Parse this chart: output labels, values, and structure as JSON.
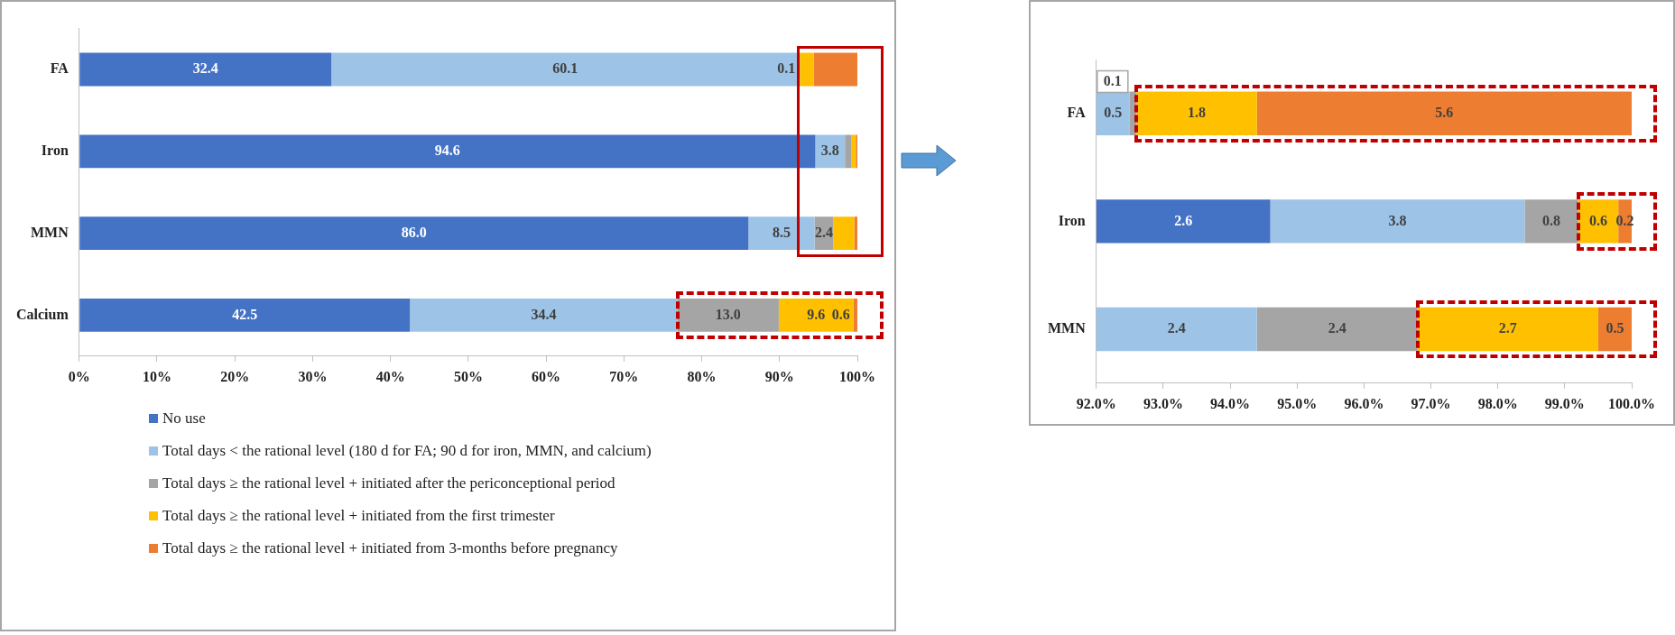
{
  "chart_data": [
    {
      "type": "bar",
      "orientation": "horizontal",
      "stacked": true,
      "grid": false,
      "legend": "bottom",
      "categories": [
        "FA",
        "Iron",
        "MMN",
        "Calcium"
      ],
      "xlim": [
        0,
        100
      ],
      "xticks": [
        {
          "value": 0,
          "label": "0%"
        },
        {
          "value": 10,
          "label": "10%"
        },
        {
          "value": 20,
          "label": "20%"
        },
        {
          "value": 30,
          "label": "30%"
        },
        {
          "value": 40,
          "label": "40%"
        },
        {
          "value": 50,
          "label": "50%"
        },
        {
          "value": 60,
          "label": "60%"
        },
        {
          "value": 70,
          "label": "70%"
        },
        {
          "value": 80,
          "label": "80%"
        },
        {
          "value": 90,
          "label": "90%"
        },
        {
          "value": 100,
          "label": "100%"
        }
      ],
      "series": [
        {
          "name": "No use",
          "color": "#4472c4",
          "values": [
            32.4,
            94.6,
            86.0,
            42.5
          ],
          "value_labels": [
            "32.4",
            "94.6",
            "86.0",
            "42.5"
          ]
        },
        {
          "name": "Total days < the rational level (180 d for FA; 90 d for iron, MMN, and calcium)",
          "color": "#9dc3e6",
          "values": [
            60.1,
            3.8,
            8.5,
            34.4
          ],
          "value_labels": [
            "60.1",
            "3.8",
            "8.5",
            "34.4"
          ]
        },
        {
          "name": "Total days ≥ the rational level + initiated after the periconceptional period",
          "color": "#a5a5a5",
          "values": [
            0.1,
            0.8,
            2.4,
            13.0
          ],
          "value_labels": [
            "0.1",
            null,
            "2.4",
            "13.0"
          ]
        },
        {
          "name": "Total days ≥ the rational level + initiated from the first trimester",
          "color": "#ffc000",
          "values": [
            1.8,
            0.6,
            2.7,
            9.6
          ],
          "value_labels": [
            null,
            null,
            null,
            "9.6"
          ]
        },
        {
          "name": "Total days ≥ the rational level + initiated from 3-months before pregnancy",
          "color": "#ed7d31",
          "values": [
            5.6,
            0.2,
            0.5,
            0.6
          ],
          "value_labels": [
            null,
            null,
            null,
            "0.6"
          ]
        }
      ]
    },
    {
      "type": "bar",
      "orientation": "horizontal",
      "grid": false,
      "legend": false,
      "data_labels": true,
      "categories": [
        "FA",
        "Iron",
        "MMN"
      ],
      "xlim": [
        92,
        100
      ],
      "xticks": [
        {
          "value": 92,
          "label": "92.0%"
        },
        {
          "value": 93,
          "label": "93.0%"
        },
        {
          "value": 94,
          "label": "94.0%"
        },
        {
          "value": 95,
          "label": "95.0%"
        },
        {
          "value": 96,
          "label": "96.0%"
        },
        {
          "value": 97,
          "label": "97.0%"
        },
        {
          "value": 98,
          "label": "98.0%"
        },
        {
          "value": 99,
          "label": "99.0%"
        },
        {
          "value": 100,
          "label": "100.0%"
        }
      ],
      "series": [
        {
          "color": "#4472c4",
          "base": [
            null,
            92,
            null
          ],
          "values": [
            null,
            2.6,
            null
          ]
        },
        {
          "color": "#9dc3e6",
          "base": [
            92,
            94.6,
            92
          ],
          "values": [
            0.5,
            3.8,
            2.4
          ]
        },
        {
          "color": "#a5a5a5",
          "base": [
            92.5,
            98.4,
            94.4
          ],
          "values": [
            0.1,
            0.8,
            2.4
          ]
        },
        {
          "color": "#ffc000",
          "base": [
            92.6,
            99.2,
            96.8
          ],
          "values": [
            1.8,
            0.6,
            2.7
          ]
        },
        {
          "color": "#ed7d31",
          "base": [
            94.4,
            99.8,
            99.5
          ],
          "values": [
            5.6,
            0.2,
            0.5
          ]
        }
      ]
    }
  ]
}
